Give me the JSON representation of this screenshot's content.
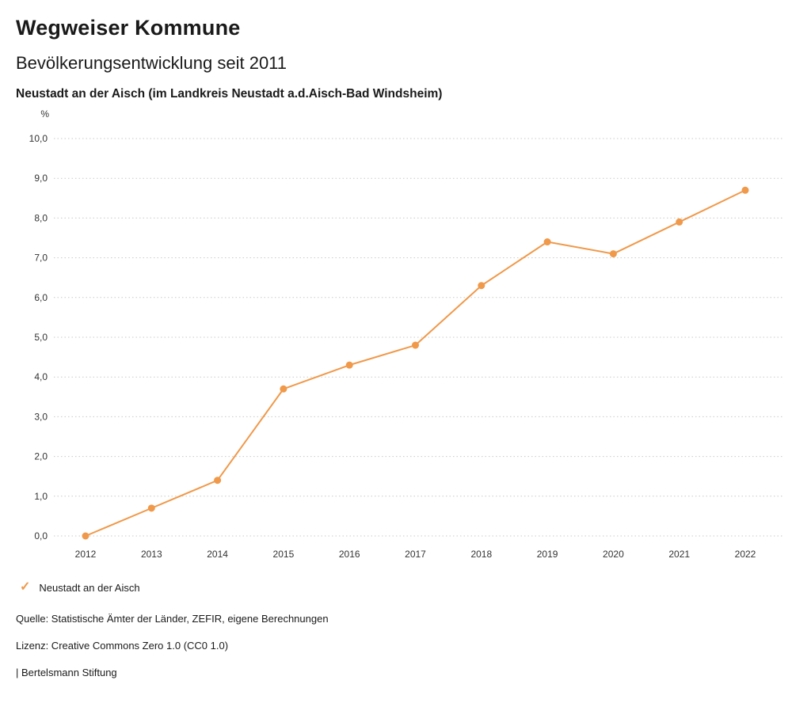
{
  "header": {
    "title": "Wegweiser Kommune",
    "subtitle": "Bevölkerungsentwicklung seit 2011",
    "location": "Neustadt an der Aisch (im Landkreis Neustadt a.d.Aisch-Bad Windsheim)"
  },
  "chart_data": {
    "type": "line",
    "title": "Bevölkerungsentwicklung seit 2011",
    "unit_label": "%",
    "categories": [
      "2012",
      "2013",
      "2014",
      "2015",
      "2016",
      "2017",
      "2018",
      "2019",
      "2020",
      "2021",
      "2022"
    ],
    "series": [
      {
        "name": "Neustadt an der Aisch",
        "values": [
          0.0,
          0.7,
          1.4,
          3.7,
          4.3,
          4.8,
          6.3,
          7.4,
          7.1,
          7.9,
          8.7
        ],
        "color": "#F0994A"
      }
    ],
    "ylim": [
      0,
      10
    ],
    "ytick_step": 1,
    "ytick_labels": [
      "0,0",
      "1,0",
      "2,0",
      "3,0",
      "4,0",
      "5,0",
      "6,0",
      "7,0",
      "8,0",
      "9,0",
      "10,0"
    ],
    "xlabel": "",
    "ylabel": "%",
    "grid": "horizontal-dotted",
    "grid_color": "#c9c9c9",
    "tick_label_color": "#333333",
    "legend_position": "bottom"
  },
  "legend": {
    "items": [
      {
        "label": "Neustadt an der Aisch",
        "marker": "check-icon",
        "color": "#F0994A"
      }
    ]
  },
  "footer": {
    "source": "Quelle: Statistische Ämter der Länder, ZEFIR, eigene Berechnungen",
    "license": "Lizenz: Creative Commons Zero 1.0 (CC0 1.0)",
    "branding": "| Bertelsmann Stiftung"
  }
}
